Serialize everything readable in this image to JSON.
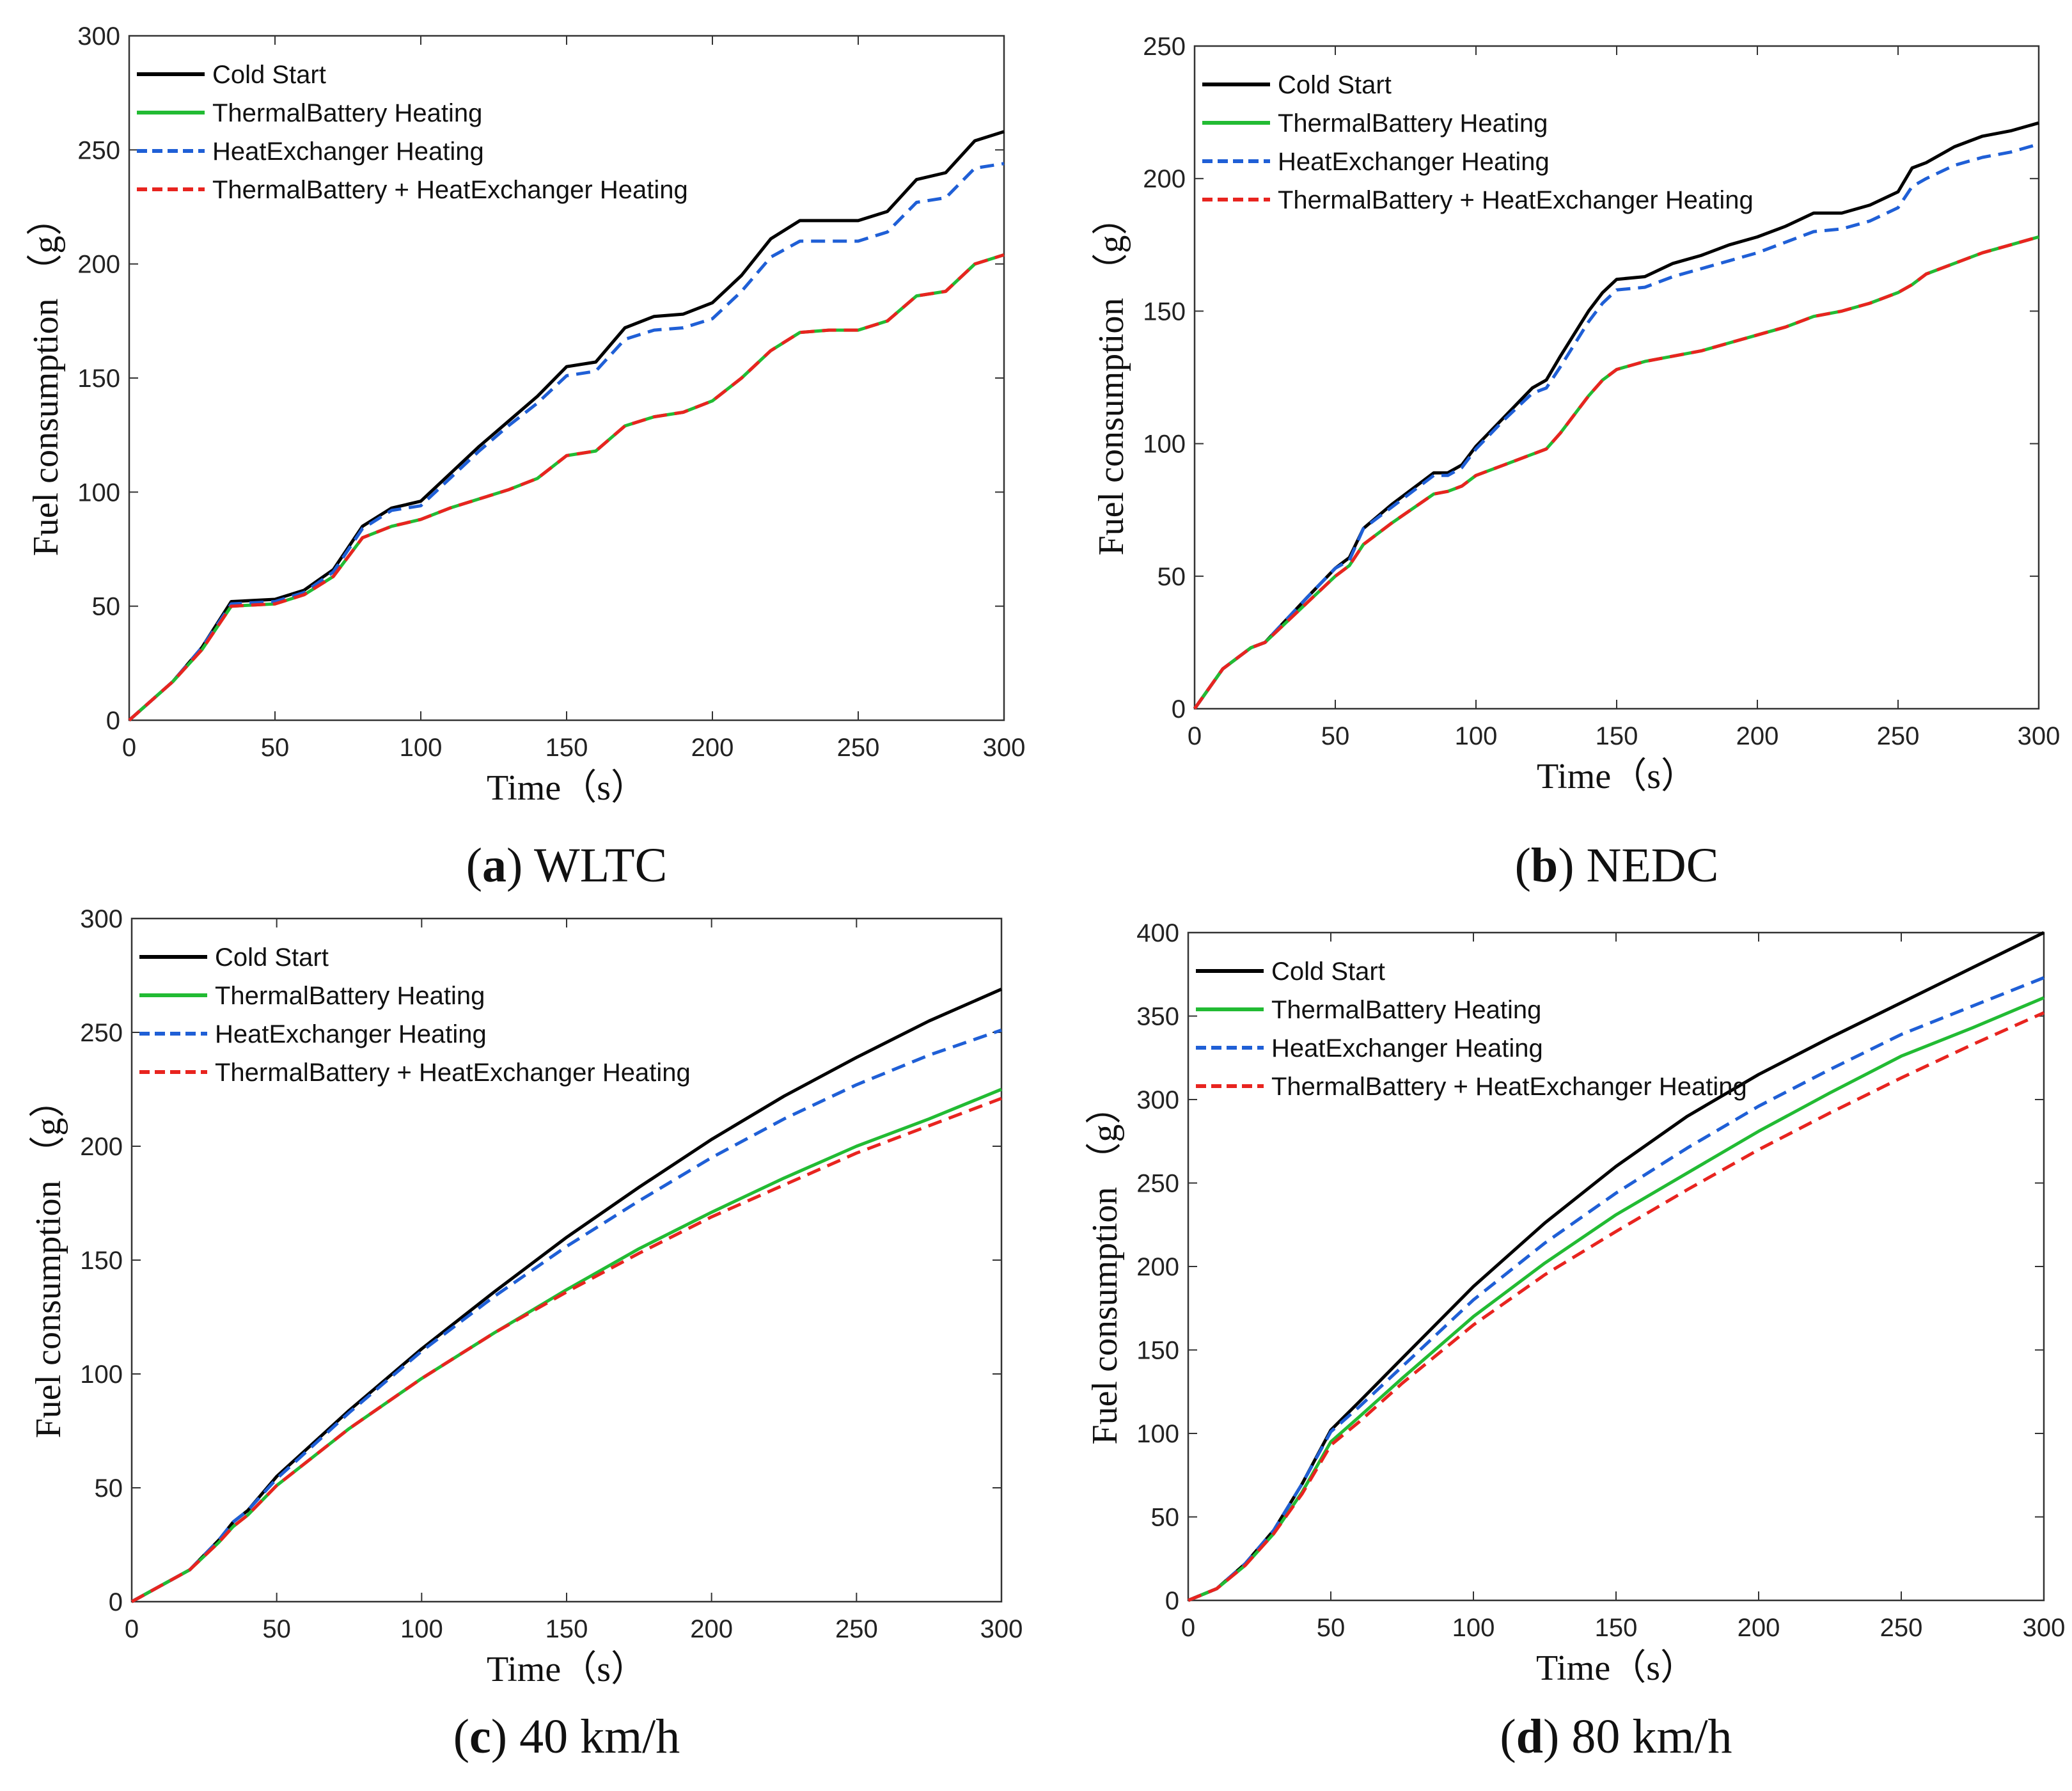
{
  "figure": {
    "legend": [
      {
        "label": "Cold Start",
        "color": "#000000",
        "style": "solid"
      },
      {
        "label": "ThermalBattery Heating",
        "color": "#22bb33",
        "style": "solid"
      },
      {
        "label": "HeatExchanger Heating",
        "color": "#1f5fd6",
        "style": "dashed"
      },
      {
        "label": "ThermalBattery + HeatExchanger Heating",
        "color": "#e8241f",
        "style": "dashed"
      }
    ]
  },
  "chart_data": [
    {
      "type": "line",
      "id": "a",
      "caption_letter": "a",
      "caption_text": "WLTC",
      "xlabel": "Time（s）",
      "ylabel": "Fuel consumption （g）",
      "xlim": [
        0,
        300
      ],
      "ylim": [
        0,
        300
      ],
      "xticks": [
        0,
        50,
        100,
        150,
        200,
        250,
        300
      ],
      "yticks": [
        0,
        50,
        100,
        150,
        200,
        250,
        300
      ],
      "legend_position": "top-left",
      "series": [
        {
          "name": "Cold Start",
          "color": "#000000",
          "dashed": false,
          "x": [
            0,
            15,
            25,
            35,
            50,
            60,
            70,
            80,
            90,
            100,
            110,
            120,
            130,
            140,
            150,
            160,
            170,
            180,
            190,
            200,
            210,
            220,
            230,
            240,
            250,
            260,
            270,
            280,
            290,
            300
          ],
          "y": [
            0,
            17,
            32,
            52,
            53,
            57,
            66,
            85,
            93,
            96,
            108,
            120,
            131,
            142,
            155,
            157,
            172,
            177,
            178,
            183,
            195,
            211,
            219,
            219,
            219,
            223,
            237,
            240,
            254,
            258
          ]
        },
        {
          "name": "ThermalBattery Heating",
          "color": "#22bb33",
          "dashed": false,
          "x": [
            0,
            15,
            25,
            35,
            50,
            60,
            70,
            80,
            90,
            100,
            110,
            120,
            130,
            140,
            150,
            160,
            170,
            180,
            190,
            200,
            210,
            220,
            230,
            240,
            250,
            260,
            270,
            280,
            290,
            300
          ],
          "y": [
            0,
            17,
            31,
            50,
            51,
            55,
            63,
            80,
            85,
            88,
            93,
            97,
            101,
            106,
            116,
            118,
            129,
            133,
            135,
            140,
            150,
            162,
            170,
            171,
            171,
            175,
            186,
            188,
            200,
            204
          ]
        },
        {
          "name": "HeatExchanger Heating",
          "color": "#1f5fd6",
          "dashed": true,
          "x": [
            0,
            15,
            25,
            35,
            50,
            60,
            70,
            80,
            90,
            100,
            110,
            120,
            130,
            140,
            150,
            160,
            170,
            180,
            190,
            200,
            210,
            220,
            230,
            240,
            250,
            260,
            270,
            280,
            290,
            300
          ],
          "y": [
            0,
            17,
            32,
            51,
            52,
            56,
            65,
            84,
            92,
            94,
            106,
            118,
            129,
            139,
            151,
            153,
            167,
            171,
            172,
            176,
            188,
            203,
            210,
            210,
            210,
            214,
            227,
            229,
            242,
            244
          ]
        },
        {
          "name": "ThermalBattery + HeatExchanger Heating",
          "color": "#e8241f",
          "dashed": true,
          "x": [
            0,
            15,
            25,
            35,
            50,
            60,
            70,
            80,
            90,
            100,
            110,
            120,
            130,
            140,
            150,
            160,
            170,
            180,
            190,
            200,
            210,
            220,
            230,
            240,
            250,
            260,
            270,
            280,
            290,
            300
          ],
          "y": [
            0,
            17,
            31,
            50,
            51,
            55,
            63,
            80,
            85,
            88,
            93,
            97,
            101,
            106,
            116,
            118,
            129,
            133,
            135,
            140,
            150,
            162,
            170,
            171,
            171,
            175,
            186,
            188,
            200,
            204
          ]
        }
      ]
    },
    {
      "type": "line",
      "id": "b",
      "caption_letter": "b",
      "caption_text": "NEDC",
      "xlabel": "Time（s）",
      "ylabel": "Fuel consumption （g）",
      "xlim": [
        0,
        300
      ],
      "ylim": [
        0,
        250
      ],
      "xticks": [
        0,
        50,
        100,
        150,
        200,
        250,
        300
      ],
      "yticks": [
        0,
        50,
        100,
        150,
        200,
        250
      ],
      "legend_position": "top-left",
      "series": [
        {
          "name": "Cold Start",
          "color": "#000000",
          "dashed": false,
          "x": [
            0,
            10,
            20,
            25,
            40,
            50,
            55,
            60,
            70,
            85,
            90,
            95,
            100,
            110,
            120,
            125,
            130,
            140,
            145,
            150,
            160,
            170,
            180,
            190,
            200,
            210,
            220,
            230,
            240,
            250,
            255,
            260,
            270,
            280,
            290,
            300
          ],
          "y": [
            0,
            15,
            23,
            25,
            42,
            53,
            57,
            68,
            77,
            89,
            89,
            92,
            99,
            110,
            121,
            124,
            133,
            150,
            157,
            162,
            163,
            168,
            171,
            175,
            178,
            182,
            187,
            187,
            190,
            195,
            204,
            206,
            212,
            216,
            218,
            221
          ]
        },
        {
          "name": "ThermalBattery Heating",
          "color": "#22bb33",
          "dashed": false,
          "x": [
            0,
            10,
            20,
            25,
            40,
            50,
            55,
            60,
            70,
            85,
            90,
            95,
            100,
            110,
            120,
            125,
            130,
            140,
            145,
            150,
            160,
            170,
            180,
            190,
            200,
            210,
            220,
            230,
            240,
            250,
            255,
            260,
            270,
            280,
            290,
            300
          ],
          "y": [
            0,
            15,
            23,
            25,
            40,
            50,
            54,
            62,
            70,
            81,
            82,
            84,
            88,
            92,
            96,
            98,
            104,
            118,
            124,
            128,
            131,
            133,
            135,
            138,
            141,
            144,
            148,
            150,
            153,
            157,
            160,
            164,
            168,
            172,
            175,
            178
          ]
        },
        {
          "name": "HeatExchanger Heating",
          "color": "#1f5fd6",
          "dashed": true,
          "x": [
            0,
            10,
            20,
            25,
            40,
            50,
            55,
            60,
            70,
            85,
            90,
            95,
            100,
            110,
            120,
            125,
            130,
            140,
            145,
            150,
            160,
            170,
            180,
            190,
            200,
            210,
            220,
            230,
            240,
            250,
            255,
            260,
            270,
            280,
            290,
            300
          ],
          "y": [
            0,
            15,
            23,
            25,
            42,
            53,
            56,
            68,
            76,
            88,
            88,
            91,
            98,
            109,
            119,
            121,
            129,
            146,
            153,
            158,
            159,
            163,
            166,
            169,
            172,
            176,
            180,
            181,
            184,
            189,
            197,
            200,
            205,
            208,
            210,
            213
          ]
        },
        {
          "name": "ThermalBattery + HeatExchanger Heating",
          "color": "#e8241f",
          "dashed": true,
          "x": [
            0,
            10,
            20,
            25,
            40,
            50,
            55,
            60,
            70,
            85,
            90,
            95,
            100,
            110,
            120,
            125,
            130,
            140,
            145,
            150,
            160,
            170,
            180,
            190,
            200,
            210,
            220,
            230,
            240,
            250,
            255,
            260,
            270,
            280,
            290,
            300
          ],
          "y": [
            0,
            15,
            23,
            25,
            40,
            50,
            54,
            62,
            70,
            81,
            82,
            84,
            88,
            92,
            96,
            98,
            104,
            118,
            124,
            128,
            131,
            133,
            135,
            138,
            141,
            144,
            148,
            150,
            153,
            157,
            160,
            164,
            168,
            172,
            175,
            178
          ]
        }
      ]
    },
    {
      "type": "line",
      "id": "c",
      "caption_letter": "c",
      "caption_text": "40 km/h",
      "xlabel": "Time（s）",
      "ylabel": "Fuel consumption （g）",
      "xlim": [
        0,
        300
      ],
      "ylim": [
        0,
        300
      ],
      "xticks": [
        0,
        50,
        100,
        150,
        200,
        250,
        300
      ],
      "yticks": [
        0,
        50,
        100,
        150,
        200,
        250,
        300
      ],
      "legend_position": "top-left",
      "series": [
        {
          "name": "Cold Start",
          "color": "#000000",
          "dashed": false,
          "x": [
            0,
            10,
            20,
            30,
            35,
            40,
            50,
            75,
            100,
            125,
            150,
            175,
            200,
            225,
            250,
            275,
            300
          ],
          "y": [
            0,
            7,
            14,
            27,
            35,
            40,
            55,
            84,
            111,
            136,
            160,
            182,
            203,
            222,
            239,
            255,
            269
          ]
        },
        {
          "name": "ThermalBattery Heating",
          "color": "#22bb33",
          "dashed": false,
          "x": [
            0,
            10,
            20,
            30,
            35,
            40,
            50,
            75,
            100,
            125,
            150,
            175,
            200,
            225,
            250,
            275,
            300
          ],
          "y": [
            0,
            7,
            14,
            26,
            33,
            38,
            51,
            76,
            98,
            118,
            137,
            155,
            171,
            186,
            200,
            212,
            225
          ]
        },
        {
          "name": "HeatExchanger Heating",
          "color": "#1f5fd6",
          "dashed": true,
          "x": [
            0,
            10,
            20,
            30,
            35,
            40,
            50,
            75,
            100,
            125,
            150,
            175,
            200,
            225,
            250,
            275,
            300
          ],
          "y": [
            0,
            7,
            14,
            27,
            35,
            40,
            54,
            83,
            110,
            134,
            156,
            176,
            195,
            212,
            227,
            240,
            251
          ]
        },
        {
          "name": "ThermalBattery + HeatExchanger Heating",
          "color": "#e8241f",
          "dashed": true,
          "x": [
            0,
            10,
            20,
            30,
            35,
            40,
            50,
            75,
            100,
            125,
            150,
            175,
            200,
            225,
            250,
            275,
            300
          ],
          "y": [
            0,
            7,
            14,
            26,
            33,
            38,
            51,
            76,
            98,
            118,
            136,
            153,
            169,
            183,
            197,
            209,
            221
          ]
        }
      ]
    },
    {
      "type": "line",
      "id": "d",
      "caption_letter": "d",
      "caption_text": "80 km/h",
      "xlabel": "Time（s）",
      "ylabel": "Fuel consumption （g）",
      "xlim": [
        0,
        300
      ],
      "ylim": [
        0,
        400
      ],
      "xticks": [
        0,
        50,
        100,
        150,
        200,
        250,
        300
      ],
      "yticks": [
        0,
        50,
        100,
        150,
        200,
        250,
        300,
        350,
        400
      ],
      "legend_position": "top-left",
      "series": [
        {
          "name": "Cold Start",
          "color": "#000000",
          "dashed": false,
          "x": [
            0,
            10,
            20,
            30,
            40,
            50,
            60,
            75,
            100,
            125,
            150,
            175,
            200,
            225,
            250,
            275,
            300
          ],
          "y": [
            0,
            7,
            22,
            42,
            70,
            102,
            119,
            145,
            188,
            226,
            260,
            290,
            315,
            337,
            358,
            379,
            400
          ]
        },
        {
          "name": "ThermalBattery Heating",
          "color": "#22bb33",
          "dashed": false,
          "x": [
            0,
            10,
            20,
            30,
            40,
            50,
            60,
            75,
            100,
            125,
            150,
            175,
            200,
            225,
            250,
            275,
            300
          ],
          "y": [
            0,
            7,
            21,
            40,
            65,
            95,
            110,
            133,
            170,
            202,
            231,
            256,
            281,
            304,
            326,
            343,
            361
          ]
        },
        {
          "name": "HeatExchanger Heating",
          "color": "#1f5fd6",
          "dashed": true,
          "x": [
            0,
            10,
            20,
            30,
            40,
            50,
            60,
            75,
            100,
            125,
            150,
            175,
            200,
            225,
            250,
            275,
            300
          ],
          "y": [
            0,
            7,
            22,
            42,
            70,
            101,
            116,
            140,
            180,
            214,
            244,
            271,
            296,
            318,
            339,
            356,
            373
          ]
        },
        {
          "name": "ThermalBattery + HeatExchanger Heating",
          "color": "#e8241f",
          "dashed": true,
          "x": [
            0,
            10,
            20,
            30,
            40,
            50,
            60,
            75,
            100,
            125,
            150,
            175,
            200,
            225,
            250,
            275,
            300
          ],
          "y": [
            0,
            7,
            21,
            40,
            64,
            93,
            107,
            130,
            165,
            195,
            221,
            246,
            270,
            292,
            313,
            333,
            352
          ]
        }
      ]
    }
  ]
}
